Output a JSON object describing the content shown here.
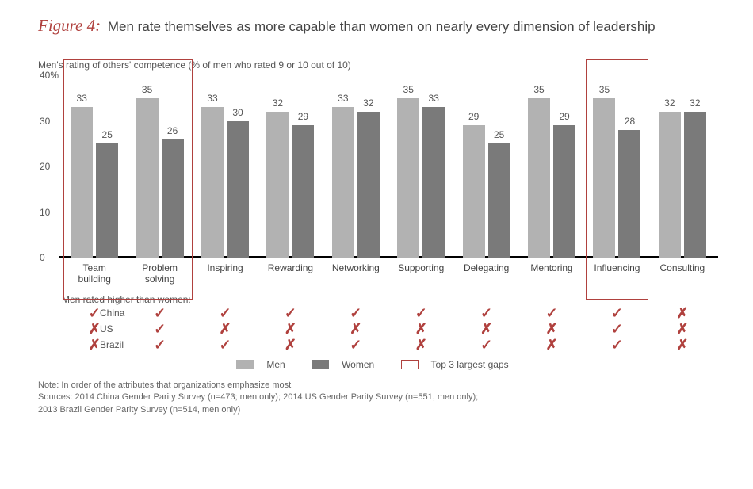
{
  "figure_label": "Figure 4:",
  "title": "Men rate themselves as more capable than women on nearly every dimension of leadership",
  "y_axis_title": "Men's rating of others' competence (% of men who rated 9 or 10 out of 10)",
  "chart": {
    "type": "bar",
    "ymax": 40,
    "ytick_step": 10,
    "ymax_label": "40%",
    "colors": {
      "men": "#b2b2b2",
      "women": "#7a7a7a",
      "highlight": "#b0413e",
      "check": "#b0413e",
      "cross": "#b0413e"
    },
    "series": [
      {
        "key": "men",
        "label": "Men"
      },
      {
        "key": "women",
        "label": "Women"
      }
    ],
    "highlight_label": "Top 3 largest gaps",
    "categories": [
      {
        "label": "Team building",
        "men": 33,
        "women": 25,
        "highlight": "start-double"
      },
      {
        "label": "Problem solving",
        "men": 35,
        "women": 26,
        "highlight": "end-double"
      },
      {
        "label": "Inspiring",
        "men": 33,
        "women": 30
      },
      {
        "label": "Rewarding",
        "men": 32,
        "women": 29
      },
      {
        "label": "Networking",
        "men": 33,
        "women": 32
      },
      {
        "label": "Supporting",
        "men": 35,
        "women": 33
      },
      {
        "label": "Delegating",
        "men": 29,
        "women": 25
      },
      {
        "label": "Mentoring",
        "men": 35,
        "women": 29
      },
      {
        "label": "Influencing",
        "men": 35,
        "women": 28,
        "highlight": "single"
      },
      {
        "label": "Consulting",
        "men": 32,
        "women": 32
      }
    ]
  },
  "rated_higher_title": "Men rated higher than women:",
  "countries": [
    {
      "name": "China",
      "marks": [
        "check",
        "check",
        "check",
        "check",
        "check",
        "check",
        "check",
        "check",
        "check",
        "cross"
      ]
    },
    {
      "name": "US",
      "marks": [
        "cross",
        "check",
        "cross",
        "cross",
        "cross",
        "cross",
        "cross",
        "cross",
        "check",
        "cross"
      ]
    },
    {
      "name": "Brazil",
      "marks": [
        "cross",
        "check",
        "check",
        "cross",
        "check",
        "cross",
        "check",
        "cross",
        "check",
        "cross"
      ]
    }
  ],
  "legend": {
    "men": "Men",
    "women": "Women",
    "gap": "Top 3 largest gaps"
  },
  "note_line1": "Note: In order of the attributes that organizations emphasize most",
  "note_line2": "Sources: 2014 China Gender Parity Survey (n=473; men only); 2014 US Gender Parity Survey (n=551, men only);",
  "note_line3": "2013 Brazil Gender Parity Survey (n=514, men only)"
}
